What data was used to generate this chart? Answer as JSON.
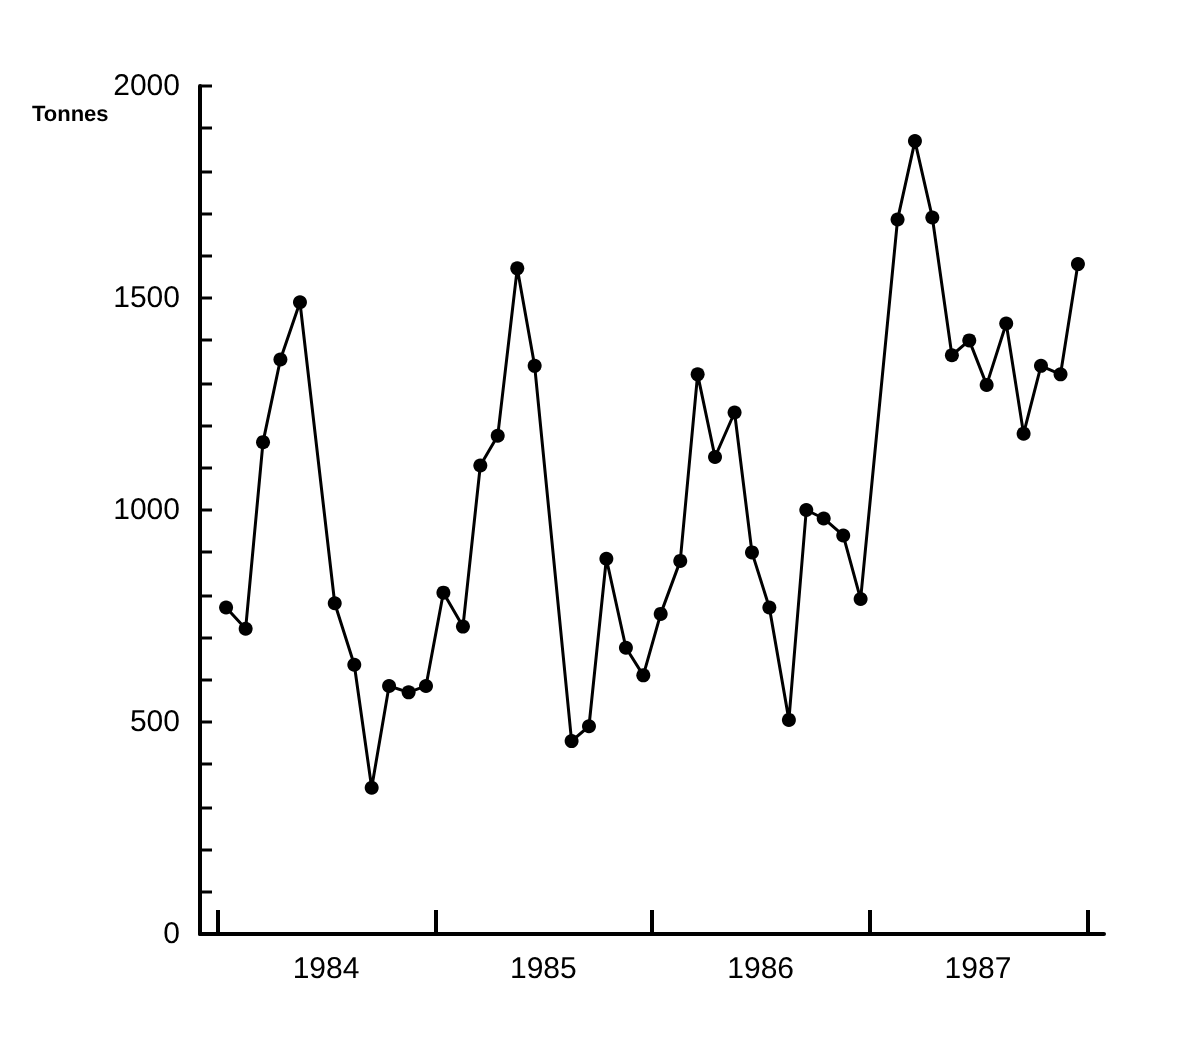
{
  "chart_data": {
    "type": "line",
    "ylabel": "Tonnes",
    "x": [
      1984.04,
      1984.13,
      1984.21,
      1984.29,
      1984.38,
      1984.54,
      1984.63,
      1984.71,
      1984.79,
      1984.88,
      1984.96,
      1985.04,
      1985.13,
      1985.21,
      1985.29,
      1985.38,
      1985.46,
      1985.63,
      1985.71,
      1985.79,
      1985.88,
      1985.96,
      1986.04,
      1986.13,
      1986.21,
      1986.29,
      1986.38,
      1986.46,
      1986.54,
      1986.63,
      1986.71,
      1986.79,
      1986.88,
      1986.96,
      1987.13,
      1987.21,
      1987.29,
      1987.38,
      1987.46,
      1987.54,
      1987.63,
      1987.71,
      1987.79,
      1987.88,
      1987.96
    ],
    "series": [
      {
        "color": "#000000",
        "values": [
          770,
          720,
          1160,
          1355,
          1490,
          780,
          635,
          345,
          585,
          570,
          585,
          805,
          725,
          1105,
          1175,
          1570,
          1340,
          455,
          490,
          885,
          675,
          610,
          755,
          880,
          1320,
          1125,
          1230,
          900,
          770,
          505,
          1000,
          980,
          940,
          790,
          1685,
          1870,
          1690,
          1365,
          1400,
          1295,
          1440,
          1180,
          1340,
          1320,
          1580
        ]
      }
    ],
    "xlim": [
      1983.92,
      1988.08
    ],
    "xticks": [
      {
        "value": 1984,
        "label": null
      },
      {
        "value": 1984.5,
        "label": "1984"
      },
      {
        "value": 1985,
        "label": null
      },
      {
        "value": 1985.5,
        "label": "1985"
      },
      {
        "value": 1986,
        "label": null
      },
      {
        "value": 1986.5,
        "label": "1986"
      },
      {
        "value": 1987,
        "label": null
      },
      {
        "value": 1987.5,
        "label": "1987"
      },
      {
        "value": 1988,
        "label": null
      }
    ],
    "ylim": [
      0,
      2000
    ],
    "yticks": [
      0,
      {
        "value": 100,
        "label": null
      },
      {
        "value": 200,
        "label": null
      },
      {
        "value": 300,
        "label": null
      },
      {
        "value": 400,
        "label": null
      },
      500,
      {
        "value": 600,
        "label": null
      },
      {
        "value": 700,
        "label": null
      },
      {
        "value": 800,
        "label": null
      },
      {
        "value": 900,
        "label": null
      },
      1000,
      {
        "value": 1100,
        "label": null
      },
      {
        "value": 1200,
        "label": null
      },
      {
        "value": 1300,
        "label": null
      },
      {
        "value": 1400,
        "label": null
      },
      1500,
      {
        "value": 1600,
        "label": null
      },
      {
        "value": 1700,
        "label": null
      },
      {
        "value": 1800,
        "label": null
      },
      {
        "value": 1900,
        "label": null
      },
      2000
    ],
    "grid": false,
    "marker": "circle",
    "line_style": "solid"
  }
}
